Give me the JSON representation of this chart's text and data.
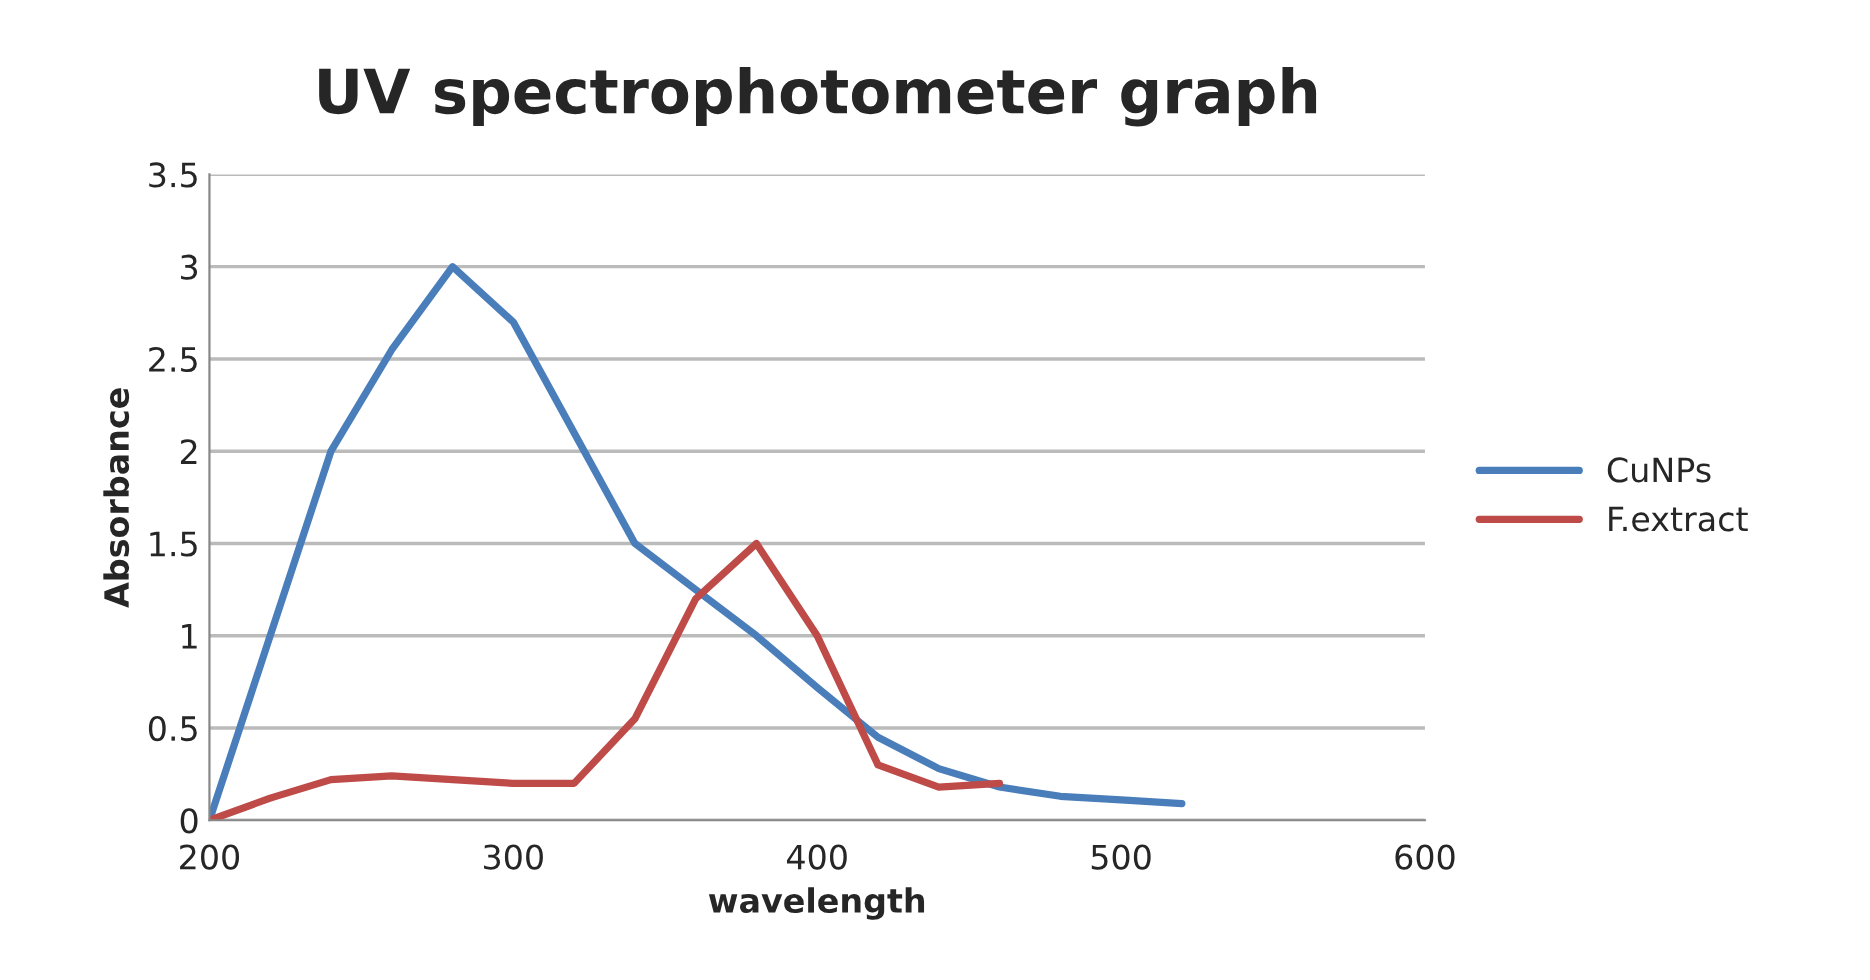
{
  "chart_data": {
    "type": "line",
    "title": "UV spectrophotometer graph",
    "xlabel": "wavelength",
    "ylabel": "Absorbance",
    "xlim": [
      200,
      600
    ],
    "xticks": [
      200,
      300,
      400,
      500,
      600
    ],
    "ylim": [
      0,
      3.5
    ],
    "yticks": [
      0,
      0.5,
      1,
      1.5,
      2,
      2.5,
      3,
      3.5
    ],
    "grid": "y",
    "legend": "right",
    "marker": "none",
    "line_style": "solid",
    "series": [
      {
        "name": "CuNPs",
        "color": "#4a7ebb",
        "x": [
          200,
          220,
          240,
          260,
          280,
          300,
          320,
          340,
          360,
          380,
          400,
          420,
          440,
          460,
          480,
          500,
          520
        ],
        "values": [
          0,
          1.0,
          2.0,
          2.55,
          3.0,
          2.7,
          2.1,
          1.5,
          1.25,
          1.0,
          0.72,
          0.45,
          0.28,
          0.18,
          0.13,
          0.11,
          0.09
        ]
      },
      {
        "name": "F.extract",
        "color": "#be4b48",
        "x": [
          200,
          220,
          240,
          260,
          280,
          300,
          320,
          340,
          360,
          380,
          400,
          420,
          440,
          460
        ],
        "values": [
          0,
          0.12,
          0.22,
          0.24,
          0.22,
          0.2,
          0.2,
          0.55,
          1.2,
          1.5,
          1.0,
          0.3,
          0.18,
          0.2
        ]
      }
    ]
  }
}
